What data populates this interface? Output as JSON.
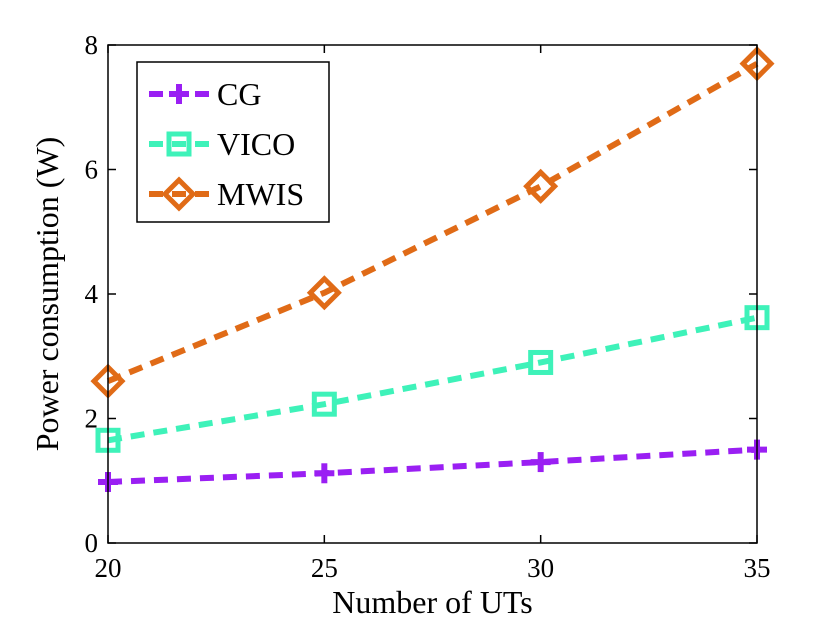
{
  "chart_data": {
    "type": "line",
    "title": "",
    "xlabel": "Number of UTs",
    "ylabel": "Power consumption (W)",
    "xlim": [
      20,
      35
    ],
    "ylim": [
      0,
      8
    ],
    "x": [
      20,
      25,
      30,
      35
    ],
    "x_ticks": [
      "20",
      "25",
      "30",
      "35"
    ],
    "y_ticks": [
      "0",
      "2",
      "4",
      "6",
      "8"
    ],
    "grid": false,
    "legend_position": "top-left",
    "series": [
      {
        "name": "CG",
        "marker": "plus",
        "color": "#9a1ff3",
        "values": [
          0.98,
          1.12,
          1.3,
          1.5
        ]
      },
      {
        "name": "VICO",
        "marker": "square",
        "color": "#3ef2b9",
        "values": [
          1.65,
          2.23,
          2.9,
          3.62
        ]
      },
      {
        "name": "MWIS",
        "marker": "diamond",
        "color": "#e06b17",
        "values": [
          2.6,
          4.02,
          5.73,
          7.7
        ]
      }
    ]
  }
}
